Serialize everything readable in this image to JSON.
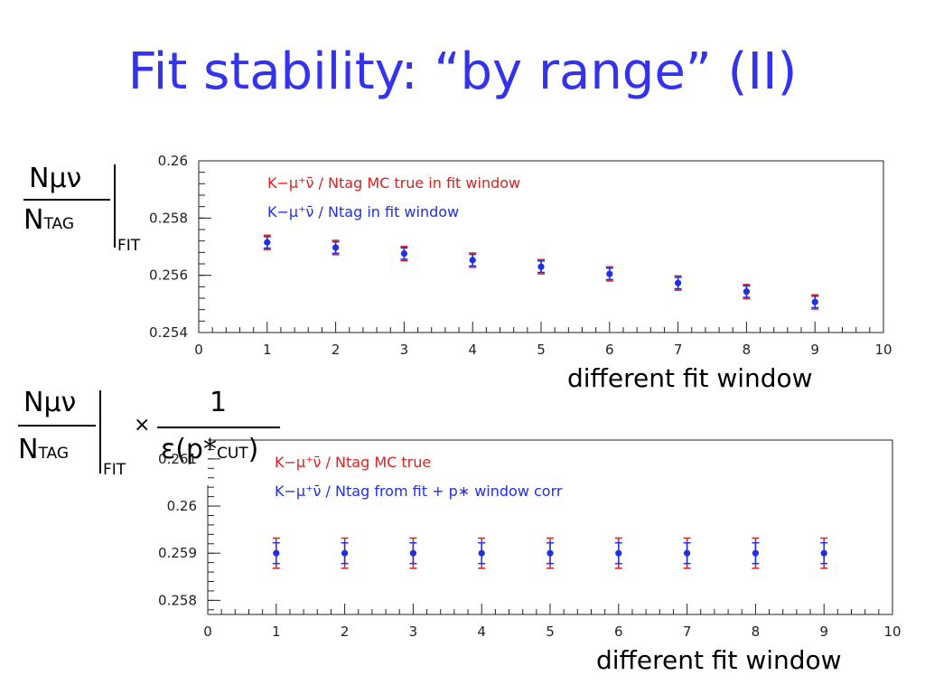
{
  "title": "Fit stability: “by range” (II)",
  "colors": {
    "title": "#3333ee",
    "mc_true": "#e02020",
    "data": "#2030e0"
  },
  "formula1": {
    "num": "Nμν",
    "den": "N",
    "den_sub": "TAG",
    "bar_sub": "FIT"
  },
  "formula2": {
    "num": "Nμν",
    "den": "N",
    "den_sub": "TAG",
    "bar_sub": "FIT",
    "times": "×",
    "frac_num": "1",
    "frac_den": "ε(p",
    "frac_star": "*",
    "frac_sub": "CUT",
    "frac_close": ")"
  },
  "caption1": "different fit window",
  "caption2": "different fit window",
  "chart_data": [
    {
      "type": "scatter",
      "title": "",
      "xlabel": "",
      "ylabel": "",
      "xlim": [
        0,
        10
      ],
      "ylim": [
        0.254,
        0.26
      ],
      "x_ticks": [
        "0",
        "1",
        "2",
        "3",
        "4",
        "5",
        "6",
        "7",
        "8",
        "9",
        "10"
      ],
      "y_ticks": [
        "0.254",
        "0.256",
        "0.258",
        "0.26"
      ],
      "legend_position": "top-left",
      "series": [
        {
          "name": "K−μ⁺ν̄ / Ntag MC true in fit window",
          "color": "#e02020",
          "x": [
            1,
            2,
            3,
            4,
            5,
            6,
            7,
            8,
            9
          ],
          "y": [
            0.25715,
            0.25697,
            0.25676,
            0.25653,
            0.2563,
            0.25605,
            0.25573,
            0.25543,
            0.25507
          ],
          "err": [
            0.00025,
            0.00025,
            0.00025,
            0.00025,
            0.00025,
            0.00025,
            0.00025,
            0.00025,
            0.00025
          ]
        },
        {
          "name": "K−μ⁺ν̄ / Ntag in fit window",
          "color": "#2030e0",
          "x": [
            1,
            2,
            3,
            4,
            5,
            6,
            7,
            8,
            9
          ],
          "y": [
            0.25715,
            0.25697,
            0.25676,
            0.25653,
            0.2563,
            0.25605,
            0.25573,
            0.25543,
            0.25507
          ],
          "err": [
            0.0002,
            0.0002,
            0.0002,
            0.0002,
            0.0002,
            0.0002,
            0.0002,
            0.0002,
            0.0002
          ]
        }
      ]
    },
    {
      "type": "scatter",
      "title": "",
      "xlabel": "",
      "ylabel": "",
      "xlim": [
        0,
        10
      ],
      "ylim": [
        0.2577,
        0.2614
      ],
      "x_ticks": [
        "0",
        "1",
        "2",
        "3",
        "4",
        "5",
        "6",
        "7",
        "8",
        "9",
        "10"
      ],
      "y_ticks": [
        "0.258",
        "0.259",
        "0.26",
        "0.261"
      ],
      "legend_position": "top-left",
      "series": [
        {
          "name": "K−μ⁺ν̄ / Ntag MC true",
          "color": "#e02020",
          "x": [
            1,
            2,
            3,
            4,
            5,
            6,
            7,
            8,
            9
          ],
          "y": [
            0.259,
            0.259,
            0.259,
            0.259,
            0.259,
            0.259,
            0.259,
            0.259,
            0.259
          ],
          "err": [
            0.00032,
            0.00032,
            0.00032,
            0.00032,
            0.00032,
            0.00032,
            0.00032,
            0.00032,
            0.00032
          ]
        },
        {
          "name": "K−μ⁺ν̄ / Ntag from fit + p∗ window corr",
          "color": "#2030e0",
          "x": [
            1,
            2,
            3,
            4,
            5,
            6,
            7,
            8,
            9
          ],
          "y": [
            0.259,
            0.259,
            0.259,
            0.259,
            0.259,
            0.259,
            0.259,
            0.259,
            0.259
          ],
          "err": [
            0.00022,
            0.00022,
            0.00022,
            0.00022,
            0.00022,
            0.00022,
            0.00022,
            0.00022,
            0.00022
          ]
        }
      ]
    }
  ]
}
